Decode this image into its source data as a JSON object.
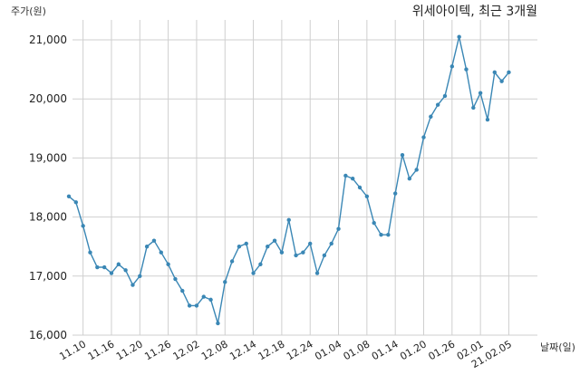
{
  "chart_data": {
    "type": "line",
    "title": "위세아이텍, 최근 3개월",
    "xlabel": "날짜(일)",
    "ylabel": "주가(원)",
    "ylim": [
      16000,
      21000
    ],
    "yticks": [
      16000,
      17000,
      18000,
      19000,
      20000,
      21000
    ],
    "ytick_labels": [
      "16,000",
      "17,000",
      "18,000",
      "19,000",
      "20,000",
      "21,000"
    ],
    "xtick_labels": [
      "11.10",
      "11.16",
      "11.20",
      "11.26",
      "12.02",
      "12.08",
      "12.14",
      "12.18",
      "12.24",
      "01.04",
      "01.08",
      "01.14",
      "01.20",
      "01.26",
      "02.01",
      "21.02.05"
    ],
    "xtick_index": [
      2,
      6,
      10,
      14,
      18,
      22,
      26,
      30,
      34,
      38,
      42,
      46,
      50,
      54,
      58,
      62
    ],
    "grid": true,
    "series": [
      {
        "values": [
          18350,
          18250,
          17850,
          17400,
          17150,
          17150,
          17050,
          17200,
          17100,
          16850,
          17000,
          17500,
          17600,
          17400,
          17200,
          16950,
          16750,
          16500,
          16500,
          16650,
          16600,
          16200,
          16900,
          17250,
          17500,
          17550,
          17050,
          17200,
          17500,
          17600,
          17400,
          17950,
          17350,
          17400,
          17550,
          17050,
          17350,
          17550,
          17800,
          18700,
          18650,
          18500,
          18350,
          17900,
          17700,
          17700,
          18400,
          19050,
          18650,
          18800,
          19350,
          19700,
          19900,
          20050,
          20550,
          21050,
          20500,
          19850,
          20100,
          19650,
          20450,
          20300,
          20450
        ]
      }
    ]
  }
}
